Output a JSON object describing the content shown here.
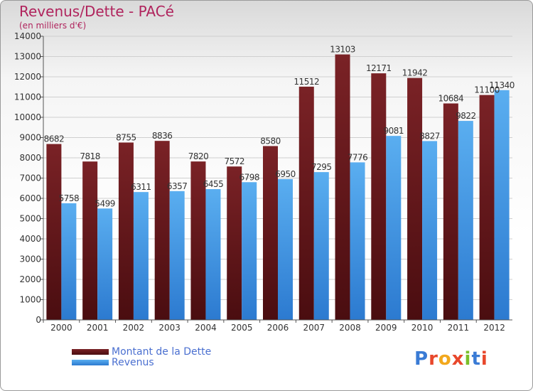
{
  "title": "Revenus/Dette - PACé",
  "subtitle": "(en milliers d'€)",
  "legend": {
    "debt_label": "Montant de la Dette",
    "revenue_label": "Revenus"
  },
  "logo": {
    "text": "Proxiti",
    "letter_colors": [
      "#3a7bd5",
      "#e8472b",
      "#f2a81d",
      "#e8472b",
      "#7bbf2a",
      "#3a7bd5",
      "#e8472b"
    ]
  },
  "colors": {
    "debt": "#7a2226",
    "debt_dark": "#4a0d10",
    "revenue": "#5aaef0",
    "revenue_dark": "#2c7ad0"
  },
  "chart_data": {
    "type": "bar",
    "categories": [
      "2000",
      "2001",
      "2002",
      "2003",
      "2004",
      "2005",
      "2006",
      "2007",
      "2008",
      "2009",
      "2010",
      "2011",
      "2012"
    ],
    "series": [
      {
        "name": "Montant de la Dette",
        "values": [
          8682,
          7818,
          8755,
          8836,
          7820,
          7572,
          8580,
          11512,
          13103,
          12171,
          11942,
          10684,
          11100
        ]
      },
      {
        "name": "Revenus",
        "values": [
          5758,
          5499,
          6311,
          6357,
          6455,
          6798,
          6950,
          7295,
          7776,
          9081,
          8827,
          9822,
          11340
        ]
      }
    ],
    "ylim": [
      0,
      14000
    ],
    "yticks": [
      0,
      1000,
      2000,
      3000,
      4000,
      5000,
      6000,
      7000,
      8000,
      9000,
      10000,
      11000,
      12000,
      13000,
      14000
    ],
    "grid": true
  }
}
